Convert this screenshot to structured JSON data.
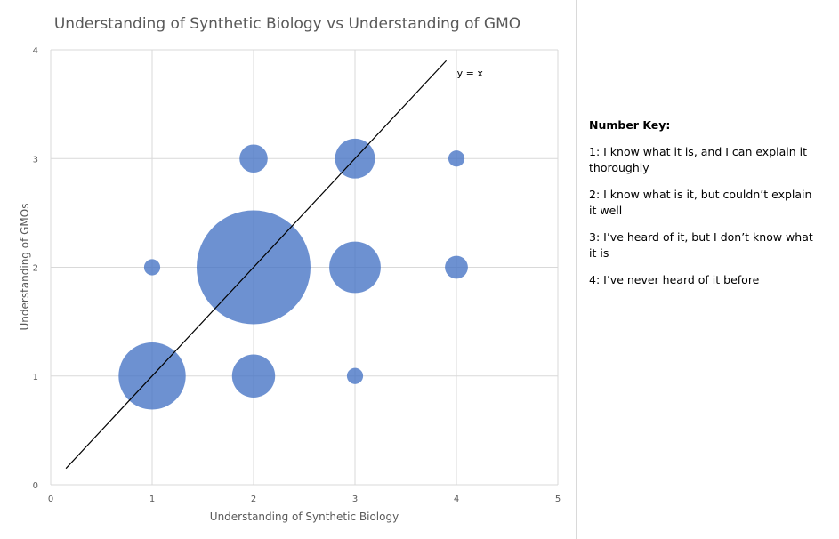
{
  "chart_data": {
    "type": "scatter",
    "title": "Understanding  of Synthetic Biology vs Understanding  of GMO",
    "xlabel": "Understanding of Synthetic Biology",
    "ylabel": "Understanding of GMOs",
    "xlim": [
      0,
      5
    ],
    "ylim": [
      0,
      4
    ],
    "xticks": [
      "0",
      "1",
      "2",
      "3",
      "4",
      "5"
    ],
    "yticks": [
      "0",
      "1",
      "2",
      "3",
      "4"
    ],
    "grid": true,
    "bubble_color": "#4472C4",
    "points": [
      {
        "x": 1,
        "y": 1,
        "size": 17
      },
      {
        "x": 1,
        "y": 2,
        "size": 1
      },
      {
        "x": 2,
        "y": 1,
        "size": 7
      },
      {
        "x": 2,
        "y": 2,
        "size": 49
      },
      {
        "x": 2,
        "y": 3,
        "size": 3
      },
      {
        "x": 3,
        "y": 1,
        "size": 1
      },
      {
        "x": 3,
        "y": 2,
        "size": 10
      },
      {
        "x": 3,
        "y": 3,
        "size": 6
      },
      {
        "x": 4,
        "y": 2,
        "size": 2
      },
      {
        "x": 4,
        "y": 3,
        "size": 1
      }
    ],
    "reference_line": {
      "label": "y = x",
      "from": [
        0.15,
        0.15
      ],
      "to": [
        3.9,
        3.9
      ]
    }
  },
  "key": {
    "title": "Number Key:",
    "items": [
      "1: I know what it is, and I can explain it thoroughly",
      "2: I know what is it, but couldn’t explain it well",
      "3: I’ve heard of it, but I don’t know what it is",
      "4: I’ve never heard of it before"
    ]
  }
}
